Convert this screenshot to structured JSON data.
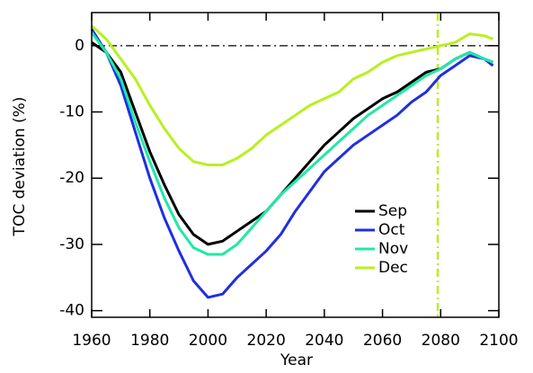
{
  "chart_data": {
    "type": "line",
    "x_label": "Year",
    "y_label": "TOC deviation (%)",
    "x": [
      1960,
      1965,
      1970,
      1975,
      1980,
      1985,
      1990,
      1995,
      2000,
      2005,
      2010,
      2015,
      2020,
      2025,
      2030,
      2035,
      2040,
      2045,
      2050,
      2055,
      2060,
      2065,
      2070,
      2075,
      2080,
      2085,
      2090,
      2095,
      2098
    ],
    "series": [
      {
        "name": "Sep",
        "color": "#000000",
        "values": [
          0.5,
          -1,
          -4,
          -10,
          -16,
          -21,
          -25.5,
          -28.5,
          -30,
          -29.5,
          -28,
          -26.5,
          -25,
          -22.5,
          -20,
          -17.5,
          -15,
          -13,
          -11,
          -9.5,
          -8,
          -7,
          -5.5,
          -4,
          -3.5,
          -2,
          -1,
          -2,
          -2.5
        ]
      },
      {
        "name": "Oct",
        "color": "#1f2fe0",
        "values": [
          2.5,
          -1,
          -6,
          -13,
          -20,
          -26,
          -31,
          -35.5,
          -38,
          -37.5,
          -35,
          -33,
          -31,
          -28.5,
          -25,
          -22,
          -19,
          -17,
          -15,
          -13.5,
          -12,
          -10.5,
          -8.5,
          -7,
          -4.5,
          -3,
          -1.5,
          -2,
          -3
        ]
      },
      {
        "name": "Nov",
        "color": "#20e8a8",
        "values": [
          2,
          -1,
          -5,
          -11.5,
          -17.5,
          -23,
          -27.5,
          -30.5,
          -31.5,
          -31.5,
          -30,
          -27.5,
          -25,
          -22.5,
          -20.5,
          -18.5,
          -16.5,
          -14.5,
          -12.5,
          -10.5,
          -9,
          -7.5,
          -6,
          -4.5,
          -3.5,
          -2,
          -1,
          -2,
          -2.5
        ]
      },
      {
        "name": "Dec",
        "color": "#b8f020",
        "values": [
          3,
          1,
          -2,
          -5,
          -9,
          -12.5,
          -15.5,
          -17.5,
          -18,
          -18,
          -17,
          -15.5,
          -13.5,
          -12,
          -10.5,
          -9,
          -8,
          -7,
          -5,
          -4,
          -2.5,
          -1.5,
          -1,
          -0.5,
          0,
          0.5,
          1.8,
          1.5,
          1
        ]
      }
    ],
    "xlim": [
      1960,
      2100
    ],
    "xticks": [
      1960,
      1980,
      2000,
      2020,
      2040,
      2060,
      2080,
      2100
    ],
    "ylim": [
      -41,
      5
    ],
    "yticks": [
      0,
      -10,
      -20,
      -30,
      -40
    ],
    "reference_lines": [
      {
        "axis": "y",
        "value": 0,
        "color": "#000000"
      },
      {
        "axis": "x",
        "value": 2079,
        "color": "#b8f020"
      }
    ],
    "legend": "lower right"
  }
}
